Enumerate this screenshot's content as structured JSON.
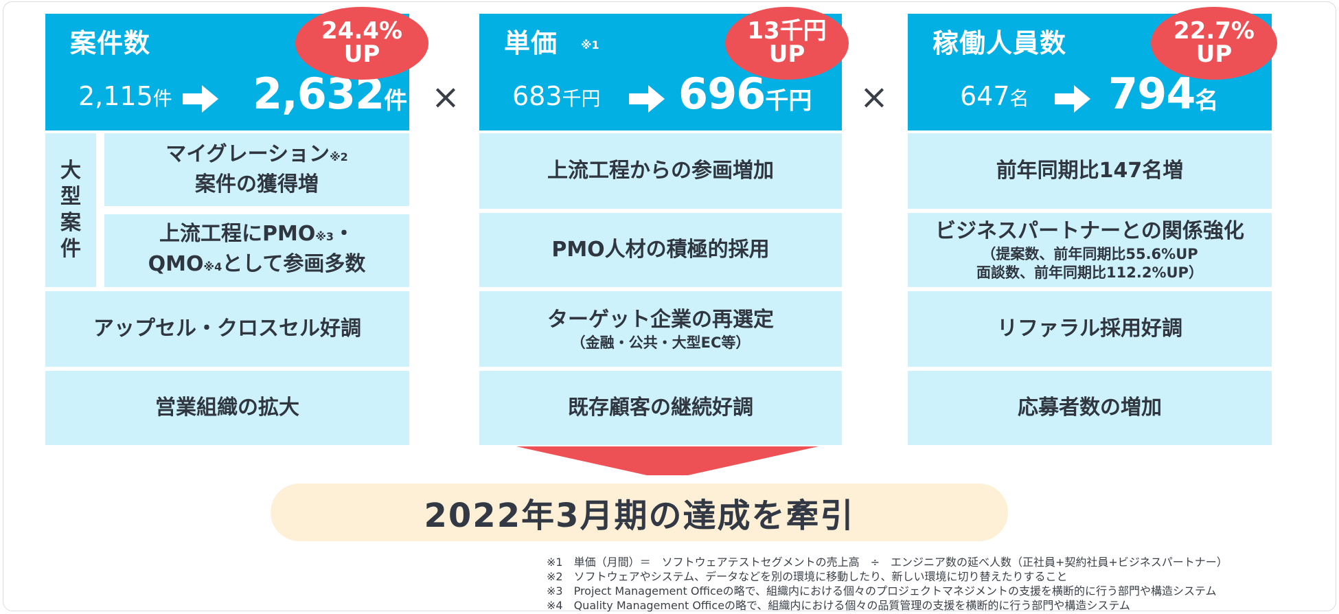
{
  "colors": {
    "header": "#02b0e3",
    "badge": "#ee5155",
    "box": "#cdf2fb",
    "banner": "#fdf0d6"
  },
  "columns": [
    {
      "title": "案件数",
      "note": "",
      "badge": {
        "line1": "24.4%",
        "line2": "UP"
      },
      "before": {
        "value": "2,115",
        "unit": "件"
      },
      "after": {
        "value": "2,632",
        "unit": "件"
      },
      "group_label": "大型案件",
      "group_items": [
        {
          "line1": "マイグレーション",
          "note": "※2",
          "line2": "案件の獲得増"
        },
        {
          "line1a": "上流工程にPMO",
          "note1": "※3",
          "line1b": "・",
          "line2a": "QMO",
          "note2": "※4",
          "line2b": "として参画多数"
        }
      ],
      "items": [
        "アップセル・クロスセル好調",
        "営業組織の拡大"
      ]
    },
    {
      "title": "単価",
      "note": "※1",
      "badge": {
        "line1": "13千円",
        "line2": "UP"
      },
      "before": {
        "value": "683",
        "unit": "千円"
      },
      "after": {
        "value": "696",
        "unit": "千円"
      },
      "items": [
        {
          "text": "上流工程からの参画増加",
          "sub": ""
        },
        {
          "text": "PMO人材の積極的採用",
          "sub": ""
        },
        {
          "text": "ターゲット企業の再選定",
          "sub": "（金融・公共・大型EC等）"
        },
        {
          "text": "既存顧客の継続好調",
          "sub": ""
        }
      ]
    },
    {
      "title": "稼働人員数",
      "note": "",
      "badge": {
        "line1": "22.7%",
        "line2": "UP"
      },
      "before": {
        "value": "647",
        "unit": "名"
      },
      "after": {
        "value": "794",
        "unit": "名"
      },
      "items": [
        {
          "text": "前年同期比147名増",
          "sub1": "",
          "sub2": ""
        },
        {
          "text": "ビジネスパートナーとの関係強化",
          "sub1": "（提案数、前年同期比55.6%UP",
          "sub2": "面談数、前年同期比112.2%UP）"
        },
        {
          "text": "リファラル採用好調",
          "sub1": "",
          "sub2": ""
        },
        {
          "text": "応募者数の増加",
          "sub1": "",
          "sub2": ""
        }
      ]
    }
  ],
  "operator": "×",
  "banner": "2022年3月期の達成を牽引",
  "footnotes": [
    "※1　単価（月間）＝　ソフトウェアテストセグメントの売上高　÷　エンジニア数の延べ人数（正社員+契約社員+ビジネスパートナー）",
    "※2　ソフトウェアやシステム、データなどを別の環境に移動したり、新しい環境に切り替えたりすること",
    "※3　Project Management Officeの略で、組織内における個々のプロジェクトマネジメントの支援を横断的に行う部門や構造システム",
    "※4　Quality Management Officeの略で、組織内における個々の品質管理の支援を横断的に行う部門や構造システム"
  ]
}
